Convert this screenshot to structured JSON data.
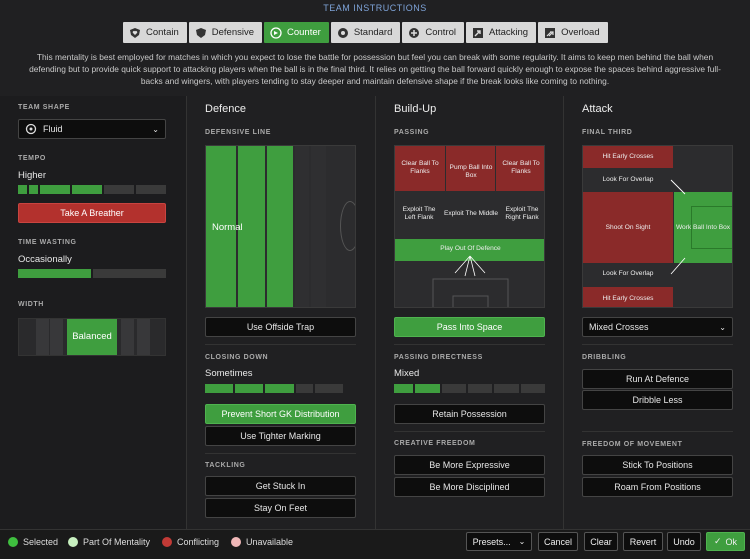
{
  "title": "TEAM INSTRUCTIONS",
  "mentalities": [
    {
      "label": "Contain",
      "icon": "shield-heart-icon"
    },
    {
      "label": "Defensive",
      "icon": "shield-icon"
    },
    {
      "label": "Counter",
      "icon": "counter-arrow-icon",
      "selected": true
    },
    {
      "label": "Standard",
      "icon": "ball-icon"
    },
    {
      "label": "Control",
      "icon": "control-icon"
    },
    {
      "label": "Attacking",
      "icon": "attacking-arrows-icon"
    },
    {
      "label": "Overload",
      "icon": "overload-arrows-icon"
    }
  ],
  "description": "This mentality is best employed for matches in which you expect to lose the battle for possession but feel you can break with some regularity.  It aims to keep men behind the ball when defending but to provide quick support to attacking players when the ball is in the final third. It relies on getting the ball forward quickly enough to expose the spaces behind aggressive full-backs and wingers, with players tending to stay deeper and maintain defensive shape if the break looks like coming to nothing.",
  "left": {
    "team_shape_label": "TEAM SHAPE",
    "team_shape_value": "Fluid",
    "tempo_label": "TEMPO",
    "tempo_value": "Higher",
    "take_breather": "Take A Breather",
    "time_wasting_label": "TIME WASTING",
    "time_wasting_value": "Occasionally",
    "width_label": "WIDTH",
    "width_value": "Balanced"
  },
  "defence": {
    "heading": "Defence",
    "defensive_line_label": "DEFENSIVE LINE",
    "defensive_line_value": "Normal",
    "offside_trap": "Use Offside Trap",
    "closing_down_label": "CLOSING DOWN",
    "closing_down_value": "Sometimes",
    "prevent_gk": "Prevent Short GK Distribution",
    "tighter_marking": "Use Tighter Marking",
    "tackling_label": "TACKLING",
    "get_stuck_in": "Get Stuck In",
    "stay_on_feet": "Stay On Feet"
  },
  "buildup": {
    "heading": "Build-Up",
    "passing_label": "PASSING",
    "zones": {
      "clear_left": "Clear Ball To Flanks",
      "pump": "Pump Ball Into Box",
      "clear_right": "Clear Ball To Flanks",
      "exploit_left": "Exploit The Left Flank",
      "exploit_middle": "Exploit The Middle",
      "exploit_right": "Exploit The Right Flank",
      "play_out": "Play Out Of Defence"
    },
    "pass_into_space": "Pass Into Space",
    "passing_directness_label": "PASSING DIRECTNESS",
    "passing_directness_value": "Mixed",
    "retain_possession": "Retain Possession",
    "creative_freedom_label": "CREATIVE FREEDOM",
    "more_expressive": "Be More Expressive",
    "more_disciplined": "Be More Disciplined"
  },
  "attack": {
    "heading": "Attack",
    "final_third_label": "FINAL THIRD",
    "zones": {
      "hit_early_top": "Hit Early Crosses",
      "overlap_top": "Look For Overlap",
      "shoot": "Shoot On Sight",
      "work_ball": "Work Ball Into Box",
      "overlap_bottom": "Look For Overlap",
      "hit_early_bottom": "Hit Early Crosses"
    },
    "crosses_value": "Mixed Crosses",
    "dribbling_label": "DRIBBLING",
    "run_at_defence": "Run At Defence",
    "dribble_less": "Dribble Less",
    "freedom_label": "FREEDOM OF MOVEMENT",
    "stick_positions": "Stick To Positions",
    "roam_positions": "Roam From Positions"
  },
  "footer": {
    "legend": [
      {
        "label": "Selected",
        "color": "#3fbf3f"
      },
      {
        "label": "Part Of Mentality",
        "color": "#c8f0c0"
      },
      {
        "label": "Conflicting",
        "color": "#c23a36"
      },
      {
        "label": "Unavailable",
        "color": "#f0b8b8"
      }
    ],
    "presets": "Presets...",
    "cancel": "Cancel",
    "clear": "Clear",
    "revert": "Revert",
    "undo": "Undo",
    "ok": "Ok"
  },
  "colors": {
    "green": "#3f9e3f",
    "red": "#b3312d",
    "accent_blue": "#7ea3d8"
  }
}
